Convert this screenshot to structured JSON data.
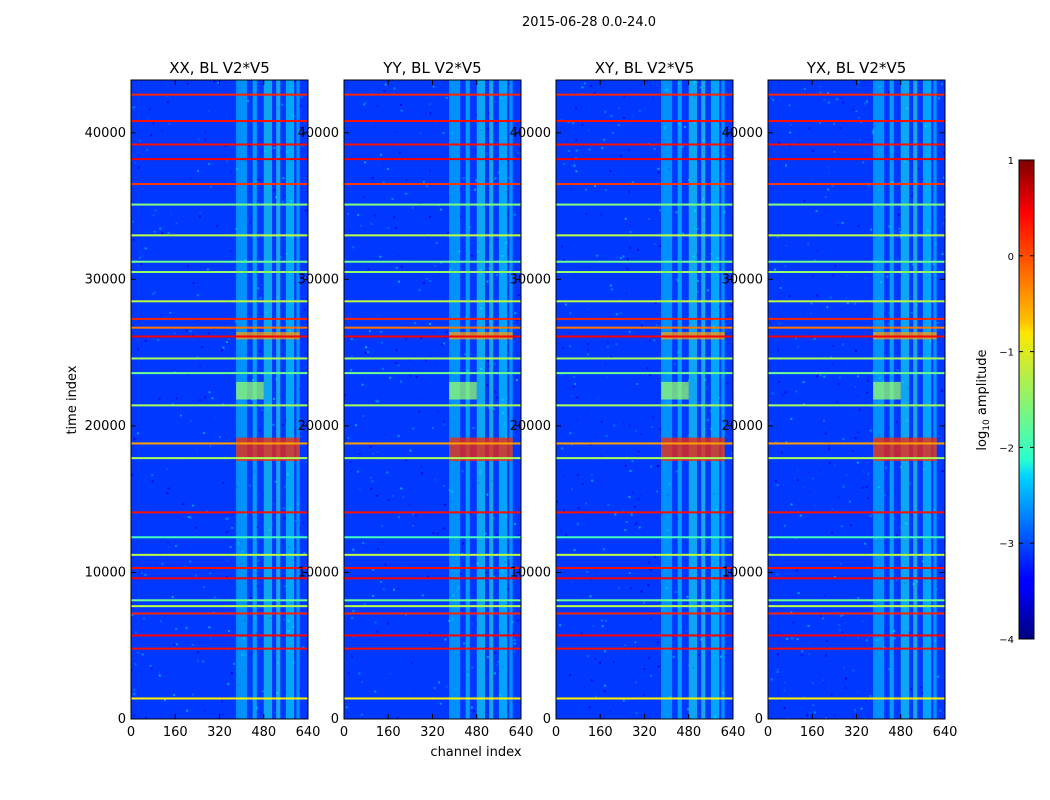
{
  "figure": {
    "suptitle": "2015-06-28 0.0-24.0"
  },
  "chart_data": {
    "type": "heatmap",
    "suptitle": "2015-06-28 0.0-24.0",
    "xlabel": "channel index",
    "ylabel": "time index",
    "xlim": [
      0,
      640
    ],
    "ylim": [
      0,
      43600
    ],
    "x_ticks": [
      0,
      160,
      320,
      480,
      640
    ],
    "y_ticks": [
      0,
      10000,
      20000,
      30000,
      40000
    ],
    "panels": [
      {
        "title": "XX, BL V2*V5",
        "polarization": "XX",
        "baseline": "V2*V5"
      },
      {
        "title": "YY, BL V2*V5",
        "polarization": "YY",
        "baseline": "V2*V5"
      },
      {
        "title": "XY, BL V2*V5",
        "polarization": "XY",
        "baseline": "V2*V5"
      },
      {
        "title": "YX, BL V2*V5",
        "polarization": "YX",
        "baseline": "V2*V5"
      }
    ],
    "colorbar": {
      "label": "log10 amplitude",
      "label_main": "log",
      "label_sub": "10",
      "label_tail": " amplitude",
      "vmin": -4,
      "vmax": 1,
      "ticks": [
        1,
        0,
        -1,
        -2,
        -3,
        -4
      ],
      "tick_labels": [
        "1",
        "0",
        "−1",
        "−2",
        "−3",
        "−4"
      ],
      "colormap": "jet"
    },
    "background_level": -3.1,
    "rfi_channel_bands": [
      {
        "start": 380,
        "end": 420,
        "level": -2.3
      },
      {
        "start": 440,
        "end": 455,
        "level": -2.2
      },
      {
        "start": 480,
        "end": 510,
        "level": -2.0
      },
      {
        "start": 525,
        "end": 540,
        "level": -1.9
      },
      {
        "start": 560,
        "end": 590,
        "level": -2.1
      },
      {
        "start": 598,
        "end": 610,
        "level": -2.3
      }
    ],
    "flagged_time_lines": [
      {
        "t": 1400,
        "level": -0.8
      },
      {
        "t": 4800,
        "level": 0.3
      },
      {
        "t": 5700,
        "level": 0.4
      },
      {
        "t": 7200,
        "level": 0.2
      },
      {
        "t": 7700,
        "level": -1.2
      },
      {
        "t": 8100,
        "level": -1.6
      },
      {
        "t": 9600,
        "level": 0.4
      },
      {
        "t": 10300,
        "level": 0.3
      },
      {
        "t": 11200,
        "level": -1.2
      },
      {
        "t": 12400,
        "level": -1.8
      },
      {
        "t": 14100,
        "level": 0.3
      },
      {
        "t": 17800,
        "level": -1.3
      },
      {
        "t": 18800,
        "level": -0.4
      },
      {
        "t": 21400,
        "level": -1.3
      },
      {
        "t": 23600,
        "level": -1.6
      },
      {
        "t": 24600,
        "level": -1.3
      },
      {
        "t": 26100,
        "level": 0.4
      },
      {
        "t": 26700,
        "level": -0.2
      },
      {
        "t": 27300,
        "level": 0.2
      },
      {
        "t": 28500,
        "level": -1.2
      },
      {
        "t": 30500,
        "level": -1.4
      },
      {
        "t": 31200,
        "level": -1.6
      },
      {
        "t": 33000,
        "level": -1.2
      },
      {
        "t": 35100,
        "level": -1.5
      },
      {
        "t": 36500,
        "level": 0.1
      },
      {
        "t": 38200,
        "level": 0.4
      },
      {
        "t": 39200,
        "level": 0.3
      },
      {
        "t": 40800,
        "level": 0.3
      },
      {
        "t": 42600,
        "level": 0.2
      }
    ],
    "rfi_burst_blocks": [
      {
        "t0": 17600,
        "t1": 19200,
        "ch0": 380,
        "ch1": 610,
        "level": 0.2
      },
      {
        "t0": 21800,
        "t1": 23000,
        "ch0": 380,
        "ch1": 480,
        "level": -1.4
      },
      {
        "t0": 25900,
        "t1": 26400,
        "ch0": 380,
        "ch1": 610,
        "level": -0.4
      }
    ]
  }
}
